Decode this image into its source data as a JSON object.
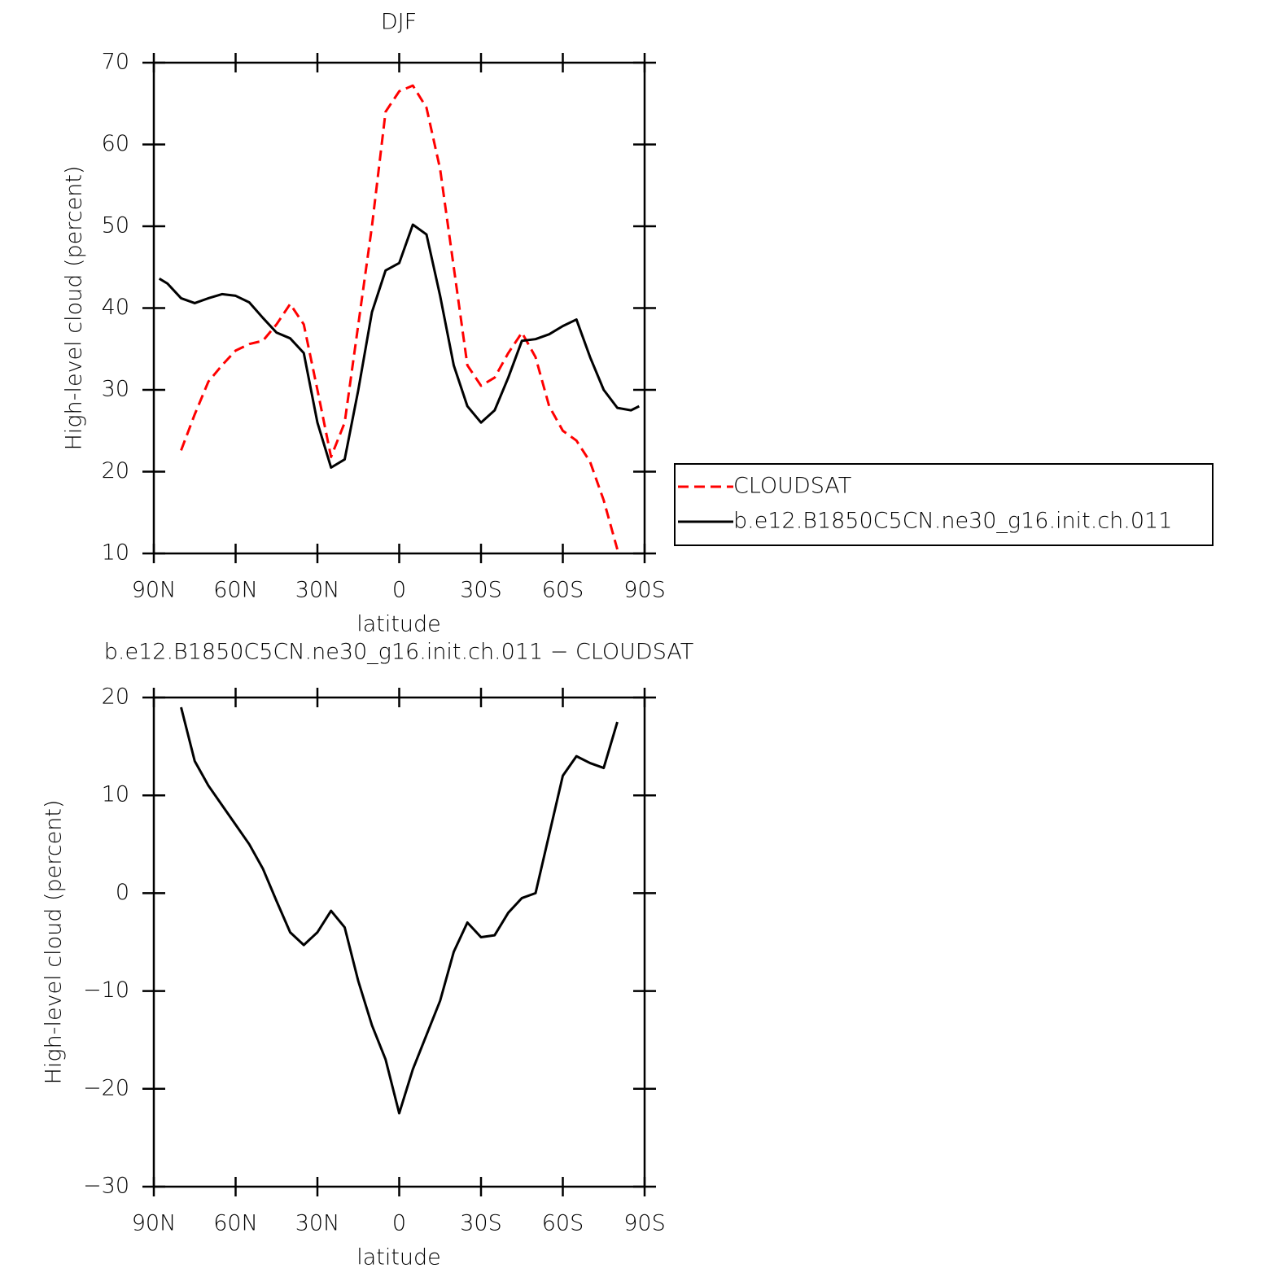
{
  "chart_data": [
    {
      "type": "line",
      "title": "DJF",
      "x_label": "latitude",
      "y_label": "High-level cloud (percent)",
      "x": [
        88,
        85,
        80,
        75,
        70,
        65,
        60,
        55,
        50,
        45,
        40,
        35,
        30,
        25,
        20,
        15,
        10,
        5,
        0,
        -5,
        -10,
        -15,
        -20,
        -25,
        -30,
        -35,
        -40,
        -45,
        -50,
        -55,
        -60,
        -65,
        -70,
        -75,
        -80,
        -85,
        -88
      ],
      "series": [
        {
          "name": "CLOUDSAT",
          "color": "#ff0000",
          "line_style": "dashed",
          "values": [
            null,
            null,
            22.6,
            27,
            31,
            33,
            34.8,
            35.6,
            36,
            38,
            40.5,
            38,
            30,
            21.8,
            26,
            38,
            50,
            64,
            66.5,
            67.2,
            64.5,
            57,
            45,
            33,
            30.5,
            31.5,
            34.5,
            37,
            34,
            28,
            25,
            23.8,
            21.2,
            16.5,
            10.5,
            null,
            null
          ]
        },
        {
          "name": "b.e12.B1850C5CN.ne30_g16.init.ch.011",
          "color": "#000000",
          "line_style": "solid",
          "values": [
            43.6,
            43,
            41.2,
            40.6,
            41.2,
            41.7,
            41.5,
            40.7,
            38.8,
            37,
            36.3,
            34.5,
            26,
            20.5,
            21.5,
            30,
            39.5,
            44.6,
            45.5,
            50.2,
            49,
            41.5,
            33,
            28,
            26,
            27.5,
            31.5,
            36,
            36.2,
            36.8,
            37.8,
            38.6,
            34,
            30,
            27.8,
            27.5,
            28
          ]
        }
      ],
      "xlim": [
        90,
        -90
      ],
      "xticks": [
        {
          "value": 90,
          "label": "90N"
        },
        {
          "value": 60,
          "label": "60N"
        },
        {
          "value": 30,
          "label": "30N"
        },
        0,
        {
          "value": -30,
          "label": "30S"
        },
        {
          "value": -60,
          "label": "60S"
        },
        {
          "value": -90,
          "label": "90S"
        }
      ],
      "ylim": [
        10,
        70
      ],
      "yticks": [
        10,
        20,
        30,
        40,
        50,
        60,
        70
      ],
      "legend": "outside-right"
    },
    {
      "type": "line",
      "title": "b.e12.B1850C5CN.ne30_g16.init.ch.011 − CLOUDSAT",
      "x_label": "latitude",
      "y_label": "High-level cloud (percent)",
      "x": [
        80,
        75,
        70,
        65,
        60,
        55,
        50,
        45,
        40,
        35,
        30,
        25,
        20,
        15,
        10,
        5,
        0,
        -5,
        -10,
        -15,
        -20,
        -25,
        -30,
        -35,
        -40,
        -45,
        -50,
        -55,
        -60,
        -65,
        -70,
        -75,
        -80
      ],
      "values": [
        19,
        13.5,
        11,
        9,
        7,
        5,
        2.5,
        -0.8,
        -4,
        -5.3,
        -4,
        -1.8,
        -3.5,
        -9,
        -13.5,
        -17,
        -22.5,
        -18,
        -14.5,
        -11,
        -6,
        -3,
        -4.5,
        -4.3,
        -2,
        -0.5,
        0,
        6,
        12,
        14,
        13.3,
        12.8,
        17.5
      ],
      "color": "#000000",
      "xlim": [
        90,
        -90
      ],
      "xticks": [
        {
          "value": 90,
          "label": "90N"
        },
        {
          "value": 60,
          "label": "60N"
        },
        {
          "value": 30,
          "label": "30N"
        },
        0,
        {
          "value": -30,
          "label": "30S"
        },
        {
          "value": -60,
          "label": "60S"
        },
        {
          "value": -90,
          "label": "90S"
        }
      ],
      "ylim": [
        -30,
        20
      ],
      "yticks": [
        {
          "value": -30,
          "label": "−30"
        },
        {
          "value": -20,
          "label": "−20"
        },
        {
          "value": -10,
          "label": "−10"
        },
        0,
        10,
        20
      ]
    }
  ]
}
